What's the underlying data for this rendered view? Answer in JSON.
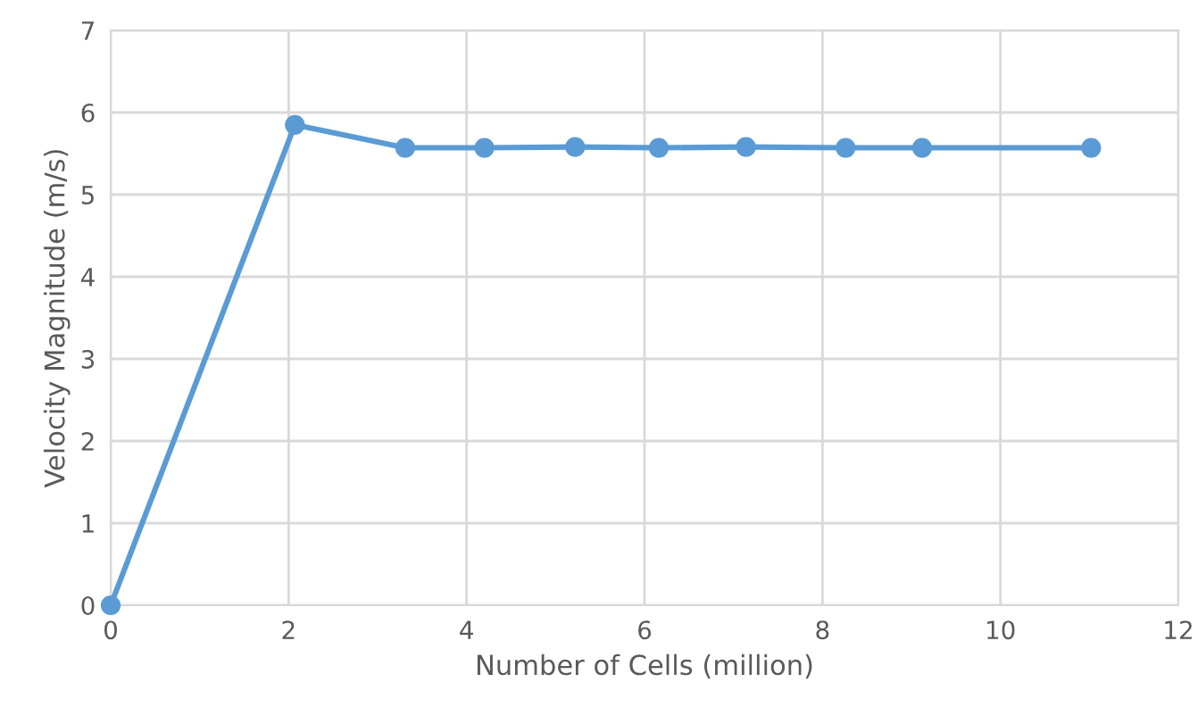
{
  "chart_data": {
    "type": "line",
    "xlabel": "Number of Cells (million)",
    "ylabel": "Velocity Magnitude (m/s)",
    "series": [
      {
        "color": "#5b9bd5",
        "x": [
          0,
          2.07,
          3.31,
          4.2,
          5.22,
          6.16,
          7.14,
          8.26,
          9.12,
          11.02
        ],
        "values": [
          0,
          5.85,
          5.57,
          5.57,
          5.58,
          5.57,
          5.58,
          5.57,
          5.57,
          5.57
        ]
      }
    ],
    "xlim": [
      0,
      12
    ],
    "xticks": [
      0,
      2,
      4,
      6,
      8,
      10,
      12
    ],
    "ylim": [
      0,
      7
    ],
    "yticks": [
      0,
      1,
      2,
      3,
      4,
      5,
      6,
      7
    ],
    "grid": true,
    "marker": "circle",
    "line_style": "solid",
    "legend": false
  }
}
